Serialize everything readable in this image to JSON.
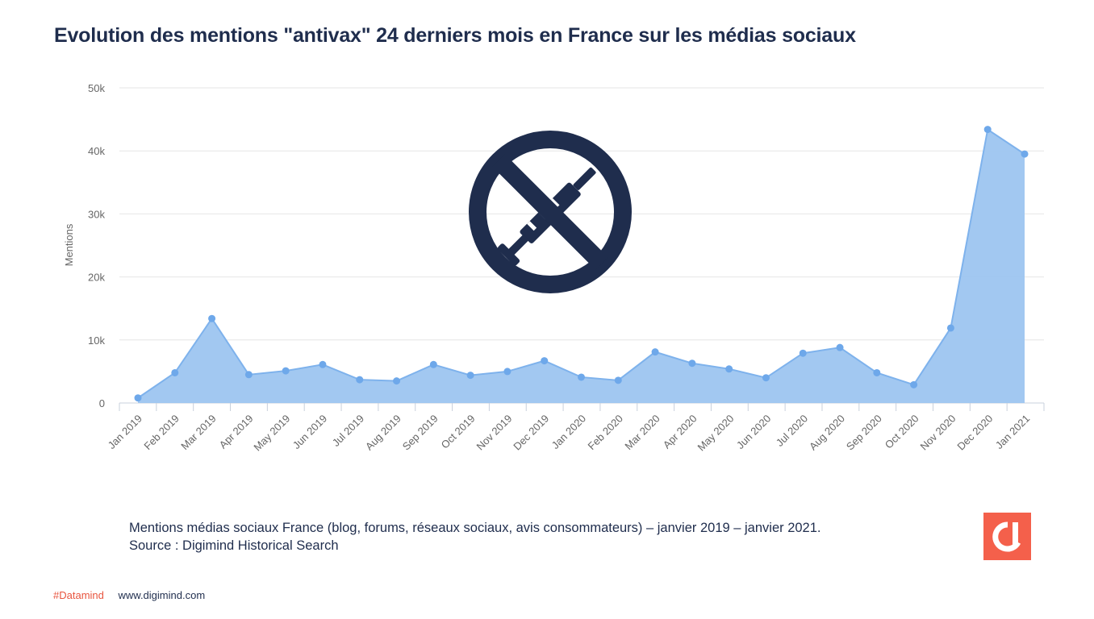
{
  "title": "Evolution des mentions \"antivax\" 24 derniers mois en France sur les médias sociaux",
  "caption": {
    "line1": "Mentions médias sociaux France  (blog, forums, réseaux sociaux, avis consommateurs) – janvier 2019 – janvier 2021.",
    "line2": "Source : Digimind Historical  Search"
  },
  "footer": {
    "hashtag": "#Datamind",
    "url": "www.digimind.com"
  },
  "icons": {
    "overlay": "no-vaccine-syringe-icon",
    "logo": "digimind-logo"
  },
  "colors": {
    "title": "#1f2d4d",
    "area_fill": "#9dc5f0",
    "area_line": "#7eb2ec",
    "marker": "#6ea8ea",
    "icon": "#1f2d4d",
    "logo_bg": "#f4604b",
    "hashtag": "#e8553f"
  },
  "chart_data": {
    "type": "area",
    "ylabel": "Mentions",
    "xlabel": "",
    "ylim": [
      0,
      50000
    ],
    "yticks": [
      0,
      10000,
      20000,
      30000,
      40000,
      50000
    ],
    "ytick_labels": [
      "0",
      "10k",
      "20k",
      "30k",
      "40k",
      "50k"
    ],
    "grid": true,
    "markers": true,
    "categories": [
      "Jan 2019",
      "Feb 2019",
      "Mar 2019",
      "Apr 2019",
      "May 2019",
      "Jun 2019",
      "Jul 2019",
      "Aug 2019",
      "Sep 2019",
      "Oct 2019",
      "Nov 2019",
      "Dec 2019",
      "Jan 2020",
      "Feb 2020",
      "Mar 2020",
      "Apr 2020",
      "May 2020",
      "Jun 2020",
      "Jul 2020",
      "Aug 2020",
      "Sep 2020",
      "Oct 2020",
      "Nov 2020",
      "Dec 2020",
      "Jan 2021"
    ],
    "values": [
      800,
      4800,
      13400,
      4500,
      5100,
      6100,
      3700,
      3500,
      6100,
      4400,
      5000,
      6700,
      4100,
      3600,
      8100,
      6300,
      5400,
      4000,
      7900,
      8800,
      4800,
      2900,
      11900,
      43400,
      39500
    ]
  }
}
